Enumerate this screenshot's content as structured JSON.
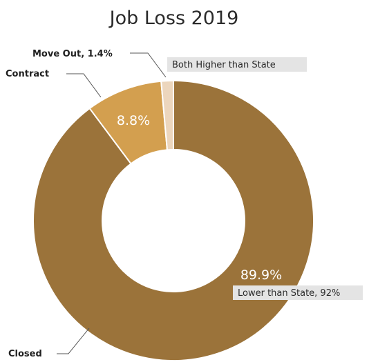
{
  "chart_data": {
    "type": "pie",
    "title": "Job Loss 2019",
    "donut": true,
    "slices": [
      {
        "name": "Closed",
        "value": 89.9,
        "label": "89.9%",
        "color": "#9b733a"
      },
      {
        "name": "Contract",
        "value": 8.8,
        "label": "8.8%",
        "color": "#d39f4f"
      },
      {
        "name": "Move Out",
        "value": 1.4,
        "label": "1.4%",
        "color": "#ecd6bd"
      }
    ],
    "callouts": {
      "closed": "Closed",
      "contract": "Contract",
      "move_out": "Move Out, 1.4%"
    },
    "notes": {
      "higher": "Both Higher than State",
      "lower": "Lower than State, 92%"
    },
    "note_box_color": "#e4e4e4"
  }
}
